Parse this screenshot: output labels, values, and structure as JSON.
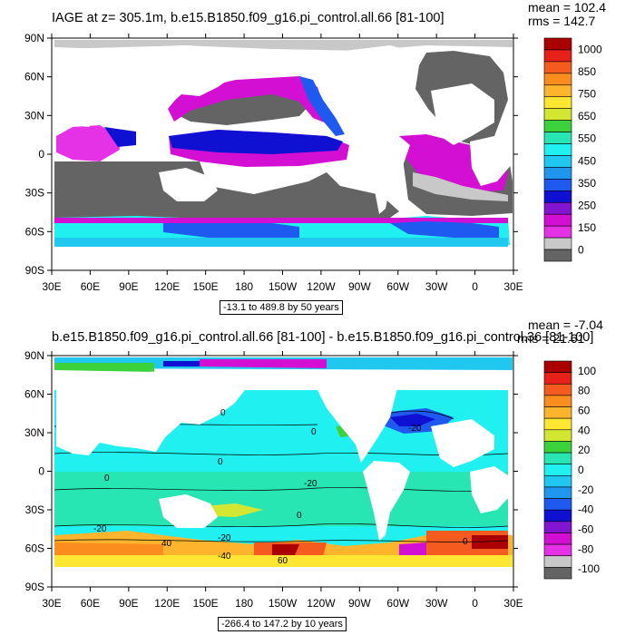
{
  "panels": [
    {
      "title": "IAGE at z= 305.1m, b.e15.B1850.f09_g16.pi_control.all.66 [81-100]",
      "mean": "mean = 102.4",
      "rms": "rms = 142.7",
      "range_note": "-13.1 to 489.8 by 50 years",
      "lat_labels": [
        "90N",
        "60N",
        "30N",
        "0",
        "30S",
        "60S",
        "90S"
      ],
      "lon_labels": [
        "30E",
        "60E",
        "90E",
        "120E",
        "150E",
        "180",
        "150W",
        "120W",
        "90W",
        "60W",
        "30W",
        "0",
        "30E"
      ],
      "colorbar": {
        "labels": [
          "1000",
          "850",
          "750",
          "650",
          "550",
          "450",
          "350",
          "250",
          "150",
          "0"
        ],
        "colors": [
          "#aa0000",
          "#e8201a",
          "#f55a1e",
          "#fb8c1e",
          "#ffb42d",
          "#ffe632",
          "#d2e632",
          "#3cd23c",
          "#28e6b4",
          "#20f0f0",
          "#20c8f0",
          "#2096f0",
          "#1e5af0",
          "#1010d2",
          "#8214d2",
          "#d20fd2",
          "#e632e6",
          "#c8c8c8",
          "#646464"
        ]
      }
    },
    {
      "title": "b.e15.B1850.f09_g16.pi_control.all.66 [81-100] - b.e15.B1850.f09_g16.pi_control.36 [81-100]",
      "mean": "mean = -7.04",
      "rms": "rms = 21.61",
      "range_note": "-266.4 to 147.2 by 10 years",
      "lat_labels": [
        "90N",
        "60N",
        "30N",
        "0",
        "30S",
        "60S",
        "90S"
      ],
      "lon_labels": [
        "30E",
        "60E",
        "90E",
        "120E",
        "150E",
        "180",
        "150W",
        "120W",
        "90W",
        "60W",
        "30W",
        "0",
        "30E"
      ],
      "colorbar": {
        "labels": [
          "100",
          "80",
          "60",
          "40",
          "20",
          "0",
          "-20",
          "-40",
          "-60",
          "-80",
          "-100"
        ],
        "colors": [
          "#aa0000",
          "#e8201a",
          "#f55a1e",
          "#fb8c1e",
          "#ffb42d",
          "#ffe632",
          "#d2e632",
          "#3cd23c",
          "#28e6b4",
          "#20f0f0",
          "#20c8f0",
          "#2096f0",
          "#1e5af0",
          "#1010d2",
          "#8214d2",
          "#d20fd2",
          "#e632e6",
          "#c8c8c8",
          "#646464"
        ]
      },
      "contour_labels": [
        "0",
        "-20",
        "0",
        "0",
        "-20",
        "0",
        "0",
        "-20",
        "-20",
        "40",
        "-40",
        "60",
        "0"
      ]
    }
  ]
}
